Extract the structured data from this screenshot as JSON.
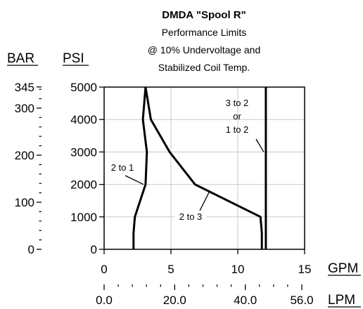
{
  "chart_data": {
    "type": "line",
    "title": "DMDA \"Spool R\"",
    "subtitle_lines": [
      "Performance Limits",
      "@ 10% Undervoltage and",
      "Stabilized Coil Temp."
    ],
    "x_axis": {
      "unit": "GPM",
      "range": [
        0,
        15
      ],
      "ticks": [
        0,
        5,
        10,
        15
      ],
      "tick_labels": [
        "0",
        "5",
        "10",
        "15"
      ]
    },
    "x2_axis": {
      "unit": "LPM",
      "range": [
        0,
        56.8
      ],
      "ticks": [
        0,
        20,
        40,
        56
      ],
      "tick_labels": [
        "0.0",
        "20.0",
        "40.0",
        "56.0"
      ],
      "minor_step": 4
    },
    "y_axis": {
      "unit": "PSI",
      "range": [
        0,
        5000
      ],
      "ticks": [
        0,
        1000,
        2000,
        3000,
        4000,
        5000
      ],
      "tick_labels": [
        "0",
        "1000",
        "2000",
        "3000",
        "4000",
        "5000"
      ]
    },
    "y2_axis": {
      "unit": "BAR",
      "range": [
        0,
        344.7
      ],
      "ticks": [
        0,
        100,
        200,
        300,
        345
      ],
      "tick_labels": [
        "0",
        "100",
        "200",
        "300",
        "345"
      ],
      "minor_step": 20
    },
    "grid": true,
    "series": [
      {
        "name": "2 to 1",
        "x": [
          2.2,
          2.2,
          2.3,
          3.1,
          3.2,
          2.9,
          3.1
        ],
        "y": [
          0,
          500,
          1000,
          2000,
          3000,
          4000,
          5000
        ]
      },
      {
        "name": "2 to 3",
        "x": [
          11.8,
          11.8,
          11.7,
          6.8,
          4.9,
          3.5,
          3.1
        ],
        "y": [
          0,
          500,
          1000,
          2000,
          3000,
          4000,
          5000
        ]
      },
      {
        "name": "3 to 2 or 1 to 2",
        "x": [
          12.1,
          12.1
        ],
        "y": [
          0,
          5000
        ]
      }
    ],
    "annotations": [
      {
        "lines": [
          "2 to 1"
        ],
        "leader_to": {
          "x": 3.1,
          "y": 2000
        }
      },
      {
        "lines": [
          "2 to 3"
        ],
        "leader_to": {
          "x": 8.0,
          "y": 1750
        }
      },
      {
        "lines": [
          "3 to 2",
          "or",
          "1 to 2"
        ],
        "leader_to": {
          "x": 12.1,
          "y": 3000
        }
      }
    ]
  }
}
